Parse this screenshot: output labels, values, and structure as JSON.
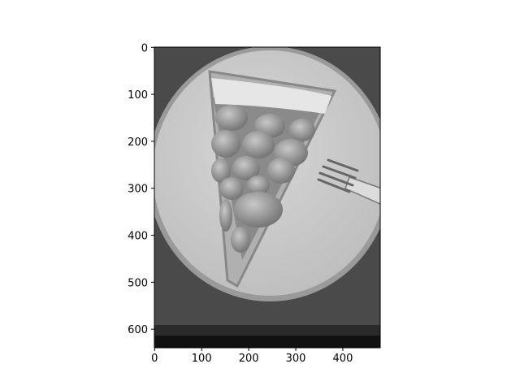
{
  "chart_data": {
    "type": "image",
    "xlim": [
      -0.5,
      479.5
    ],
    "ylim": [
      639.5,
      -0.5
    ],
    "xticks": [
      0,
      100,
      200,
      300,
      400
    ],
    "yticks": [
      0,
      100,
      200,
      300,
      400,
      500,
      600
    ]
  }
}
